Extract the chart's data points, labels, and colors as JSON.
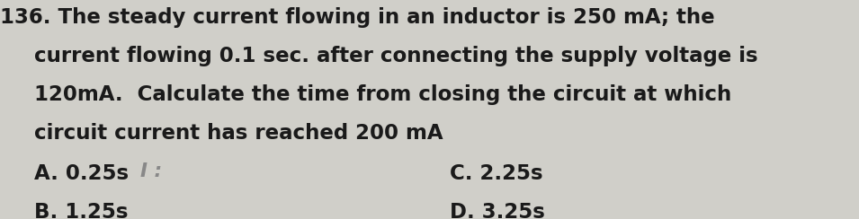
{
  "background_color": "#d0cfc9",
  "number_prefix": "136.",
  "line1": "The steady current flowing in an inductor is 250 mA; the",
  "line2": "current flowing 0.1 sec. after connecting the supply voltage is",
  "line3": "120mA.  Calculate the time from closing the circuit at which",
  "line4": "circuit current has reached 200 mA",
  "answer_A": "A. 0.25s",
  "answer_B": "B. 1.25s",
  "answer_C": "C. 2.25s",
  "answer_D": "D. 3.25s",
  "text_color": "#1a1a1a",
  "font_size_main": 16.5,
  "font_family": "DejaVu Sans",
  "answer_indicator": "I :",
  "answer_indicator_color": "#888888"
}
